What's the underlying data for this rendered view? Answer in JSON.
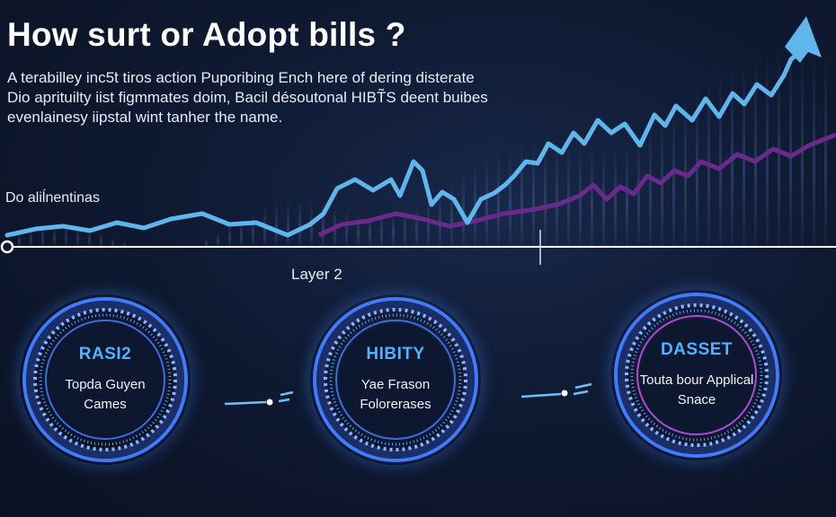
{
  "header": {
    "title": "How surt or Adopt bills ?",
    "subtitle_lines": [
      "A terabilley inc5̈t tiros action Puporibing Ench here of dering disterate",
      "Dio aprituilty iist figmmates doim, Bacil désoutonal HIBT̃S deent buibes",
      "evenlainesy iipstal wint tanher the name."
    ]
  },
  "side_label": "Do aliĺnentinas",
  "layer_label": "Layer 2",
  "nodes": [
    {
      "title": "RASI2",
      "body": "Topda Guyen Cames"
    },
    {
      "title": "HIBITY",
      "body": "Yae Frason Folorerases"
    },
    {
      "title": "DASSET",
      "body": "Touta bour Applical Snace"
    }
  ],
  "colors": {
    "background": "#0f1a33",
    "blue_line": "#5fb6ec",
    "purple_line": "#6a2a8a",
    "ring_accent": "#4a86ff",
    "ring_title": "#4fb3ff"
  },
  "icons": [
    "up-arrow-icon",
    "connector-arrow-icon"
  ]
}
